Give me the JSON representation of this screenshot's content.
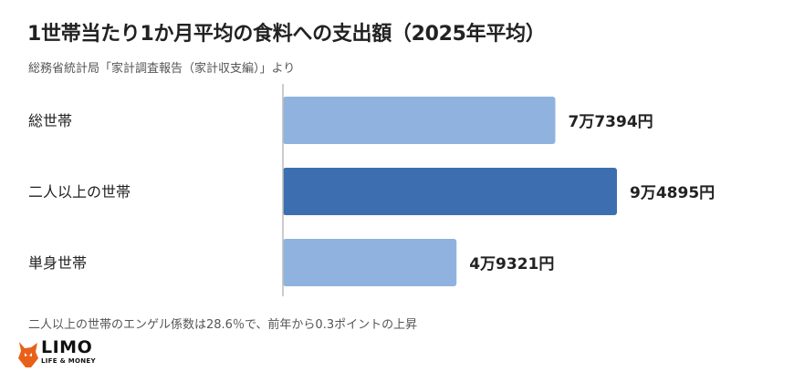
{
  "title": "1世帯当たり1か月平均の食料への支出額（2025年平均）",
  "subtitle": "総務省統計局「家計調査報告（家計収支編）」より",
  "footnote": "二人以上の世帯のエンゲル係数は28.6％で、前年から0.3ポイントの上昇",
  "logo": {
    "word": "LIMO",
    "tagline": "LIFE & MONEY",
    "icon": "fox-icon"
  },
  "chart_data": {
    "type": "bar",
    "orientation": "horizontal",
    "categories": [
      "総世帯",
      "二人以上の世帯",
      "単身世帯"
    ],
    "values": [
      77394,
      94895,
      49321
    ],
    "value_labels": [
      "7万7394円",
      "9万4895円",
      "4万9321円"
    ],
    "highlight_index": 1,
    "colors": {
      "default": "#8fb3de",
      "highlight": "#3d6fb0",
      "axis": "#bbbbbb"
    },
    "grid": false,
    "legend": "none"
  }
}
